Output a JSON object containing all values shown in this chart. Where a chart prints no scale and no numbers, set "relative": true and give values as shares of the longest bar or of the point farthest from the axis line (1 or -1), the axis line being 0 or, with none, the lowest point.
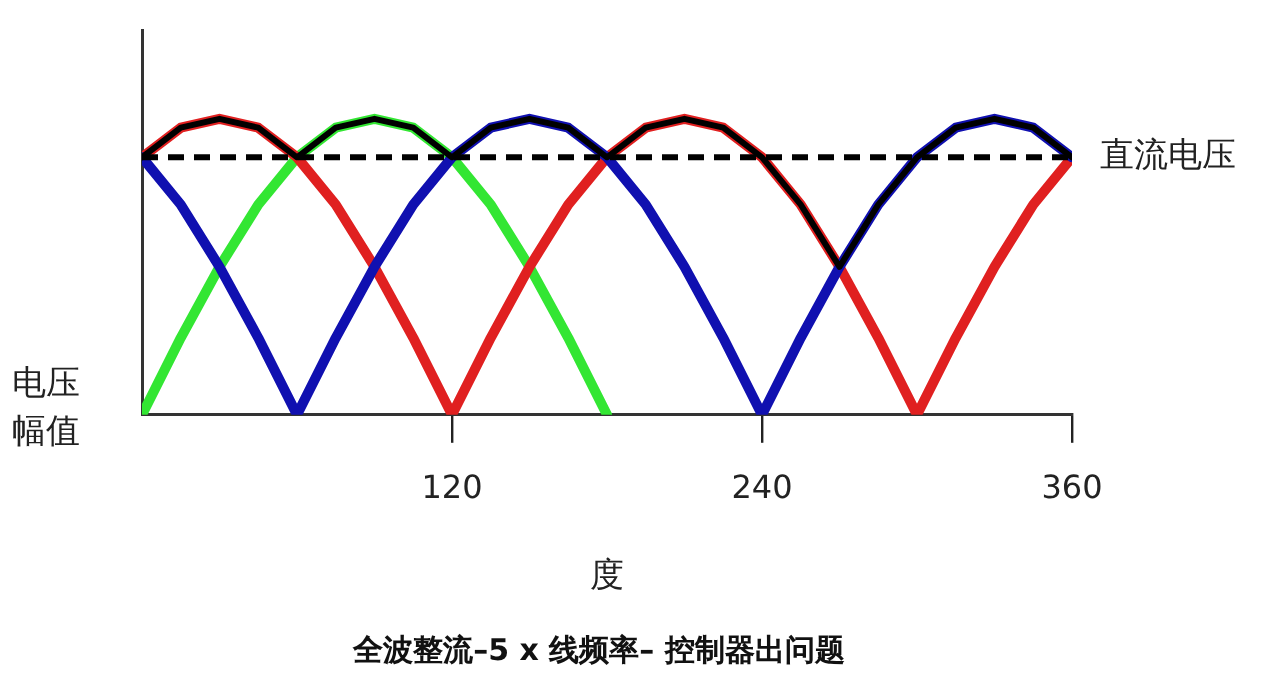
{
  "chart_data": {
    "type": "line",
    "title": "全波整流–5 x 线频率– 控制器出问题",
    "xlabel": "度",
    "ylabel": "电压幅值",
    "relative": true,
    "xlim": [
      0,
      360
    ],
    "xticks": [
      120,
      240,
      360
    ],
    "grid": false,
    "legend": false,
    "marker": "none",
    "line_style": "solid",
    "series": [
      {
        "color": "#33e633",
        "x": [
          0,
          15,
          30,
          45,
          60,
          75,
          90,
          105,
          120,
          135,
          150,
          165,
          180
        ],
        "values": [
          0,
          0.26,
          0.5,
          0.71,
          0.87,
          0.97,
          1,
          0.97,
          0.87,
          0.71,
          0.5,
          0.26,
          0
        ]
      },
      {
        "color": "#e02020",
        "x": [
          0,
          15,
          30,
          45,
          60,
          75,
          90,
          105,
          120,
          135,
          150,
          165,
          180,
          195,
          210,
          225,
          240,
          255,
          270,
          285,
          300,
          315,
          330,
          345,
          360
        ],
        "values": [
          0.87,
          0.97,
          1,
          0.97,
          0.87,
          0.71,
          0.5,
          0.26,
          0,
          0.26,
          0.5,
          0.71,
          0.87,
          0.97,
          1,
          0.97,
          0.87,
          0.71,
          0.5,
          0.26,
          0,
          0.26,
          0.5,
          0.71,
          0.87
        ]
      },
      {
        "color": "#1010b0",
        "x": [
          0,
          15,
          30,
          45,
          60,
          75,
          90,
          105,
          120,
          135,
          150,
          165,
          180,
          195,
          210,
          225,
          240,
          255,
          270,
          285,
          300,
          315,
          330,
          345,
          360
        ],
        "values": [
          0.87,
          0.71,
          0.5,
          0.26,
          0,
          0.26,
          0.5,
          0.71,
          0.87,
          0.97,
          1,
          0.97,
          0.87,
          0.71,
          0.5,
          0.26,
          0,
          0.26,
          0.5,
          0.71,
          0.87,
          0.97,
          1,
          0.97,
          0.87
        ]
      },
      {
        "color": "#000000",
        "x": [
          0,
          15,
          30,
          45,
          60,
          75,
          90,
          105,
          120,
          135,
          150,
          165,
          180,
          195,
          210,
          225,
          240,
          255,
          270,
          285,
          300,
          315,
          330,
          345,
          360
        ],
        "values": [
          0.87,
          0.97,
          1,
          0.97,
          0.87,
          0.97,
          1,
          0.97,
          0.87,
          0.97,
          1,
          0.97,
          0.87,
          0.97,
          1,
          0.97,
          0.87,
          0.71,
          0.5,
          0.71,
          0.87,
          0.97,
          1,
          0.97,
          0.87
        ]
      }
    ],
    "ref_lines": [
      {
        "axis": "y",
        "value": 0.87,
        "label": "直流电压",
        "color": "#000000",
        "line_style": "dashed"
      }
    ]
  }
}
